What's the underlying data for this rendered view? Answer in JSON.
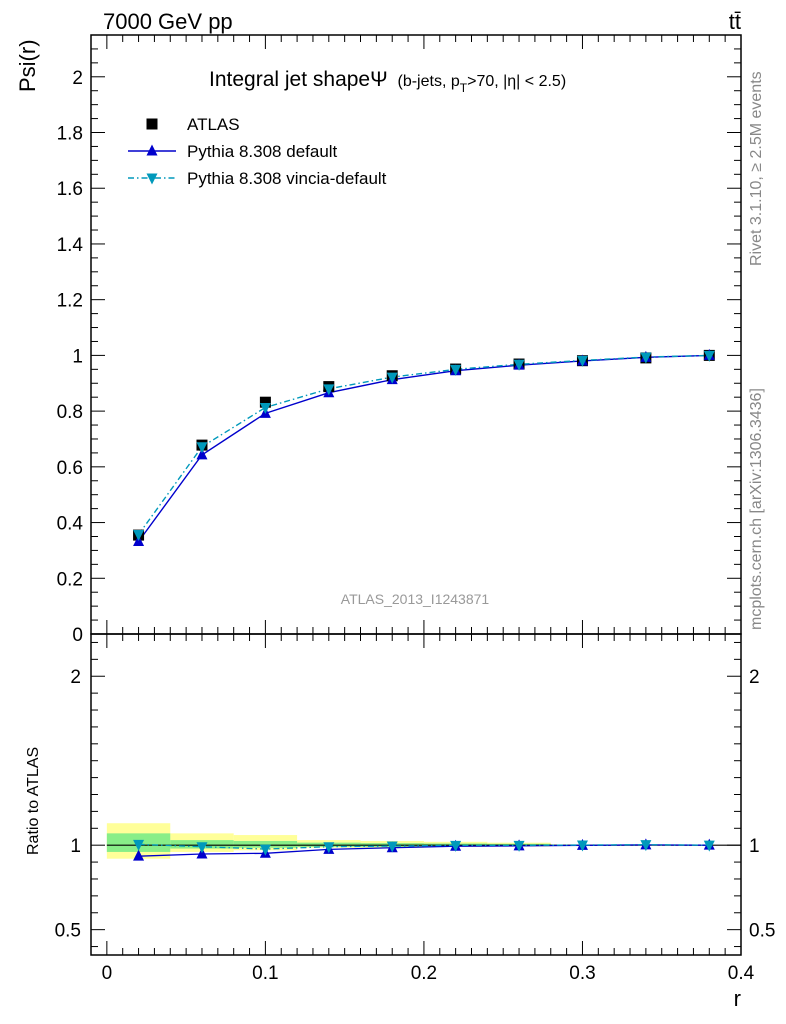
{
  "header": {
    "energy_label": "7000 GeV pp",
    "process_label": "tt̄"
  },
  "side_labels": {
    "rivet": "Rivet 3.1.10, ≥ 2.5M events",
    "mcplots": "mcplots.cern.ch [arXiv:1306.3436]"
  },
  "watermark": "ATLAS_2013_I1243871",
  "chart_data": [
    {
      "type": "line",
      "title_main": "Integral jet shapeΨ",
      "title_sub_parts": [
        "(b-jets, p",
        "T",
        ">70, |η| < 2.5)"
      ],
      "xlabel": "",
      "ylabel": "Psi(r)",
      "xlim": [
        -0.01,
        0.4
      ],
      "ylim": [
        0,
        2.15
      ],
      "y_ticks": [
        0,
        0.2,
        0.4,
        0.6,
        0.8,
        1,
        1.2,
        1.4,
        1.6,
        1.8,
        2
      ],
      "y_tick_labels": [
        "0",
        "0.2",
        "0.4",
        "0.6",
        "0.8",
        "1",
        "1.2",
        "1.4",
        "1.6",
        "1.8",
        "2"
      ],
      "legend_position": "top-left",
      "x": [
        0.02,
        0.06,
        0.1,
        0.14,
        0.18,
        0.22,
        0.26,
        0.3,
        0.34,
        0.38
      ],
      "series": [
        {
          "name": "ATLAS",
          "values": [
            0.355,
            0.678,
            0.832,
            0.888,
            0.927,
            0.951,
            0.969,
            0.981,
            0.991,
            1.0
          ],
          "color": "#000000",
          "marker": "square"
        },
        {
          "name": "Pythia 8.308 default",
          "values": [
            0.332,
            0.643,
            0.792,
            0.866,
            0.913,
            0.945,
            0.965,
            0.98,
            0.993,
            1.0
          ],
          "color": "#0000cc",
          "marker": "triangle-up",
          "dash": "solid"
        },
        {
          "name": "Pythia 8.308 vincia-default",
          "values": [
            0.357,
            0.672,
            0.813,
            0.88,
            0.922,
            0.95,
            0.968,
            0.982,
            0.994,
            1.0
          ],
          "color": "#0099bb",
          "marker": "triangle-down",
          "dash": "dashdot"
        }
      ]
    },
    {
      "type": "line",
      "xlabel": "r",
      "ylabel": "Ratio to ATLAS",
      "xlim": [
        -0.01,
        0.4
      ],
      "ylim": [
        0.35,
        2.25
      ],
      "y_ticks": [
        0.5,
        1,
        2
      ],
      "y_tick_labels": [
        "0.5",
        "1",
        "2"
      ],
      "x_ticks": [
        0,
        0.1,
        0.2,
        0.3,
        0.4
      ],
      "x_tick_labels": [
        "0",
        "0.1",
        "0.2",
        "0.3",
        "0.4"
      ],
      "x": [
        0.02,
        0.06,
        0.1,
        0.14,
        0.18,
        0.22,
        0.26,
        0.3,
        0.34,
        0.38
      ],
      "bands": [
        {
          "x0": 0.0,
          "x1": 0.04,
          "yellow": [
            0.92,
            1.13
          ],
          "green": [
            0.96,
            1.07
          ]
        },
        {
          "x0": 0.04,
          "x1": 0.08,
          "yellow": [
            0.96,
            1.07
          ],
          "green": [
            0.98,
            1.03
          ]
        },
        {
          "x0": 0.08,
          "x1": 0.12,
          "yellow": [
            0.97,
            1.06
          ],
          "green": [
            0.985,
            1.025
          ]
        },
        {
          "x0": 0.12,
          "x1": 0.16,
          "yellow": [
            0.985,
            1.03
          ],
          "green": [
            0.99,
            1.015
          ]
        },
        {
          "x0": 0.16,
          "x1": 0.2,
          "yellow": [
            0.985,
            1.025
          ],
          "green": [
            0.99,
            1.012
          ]
        },
        {
          "x0": 0.2,
          "x1": 0.24,
          "yellow": [
            0.99,
            1.02
          ],
          "green": [
            0.993,
            1.01
          ]
        },
        {
          "x0": 0.24,
          "x1": 0.28,
          "yellow": [
            0.992,
            1.015
          ],
          "green": [
            0.995,
            1.008
          ]
        }
      ],
      "series": [
        {
          "name": "Pythia 8.308 default",
          "values": [
            0.935,
            0.948,
            0.952,
            0.975,
            0.985,
            0.994,
            0.996,
            0.999,
            1.002,
            1.0
          ],
          "color": "#0000cc",
          "marker": "triangle-up"
        },
        {
          "name": "Pythia 8.308 vincia-default",
          "values": [
            1.005,
            0.991,
            0.977,
            0.991,
            0.995,
            0.999,
            0.999,
            1.001,
            1.003,
            1.0
          ],
          "color": "#0099bb",
          "marker": "triangle-down"
        }
      ]
    }
  ]
}
